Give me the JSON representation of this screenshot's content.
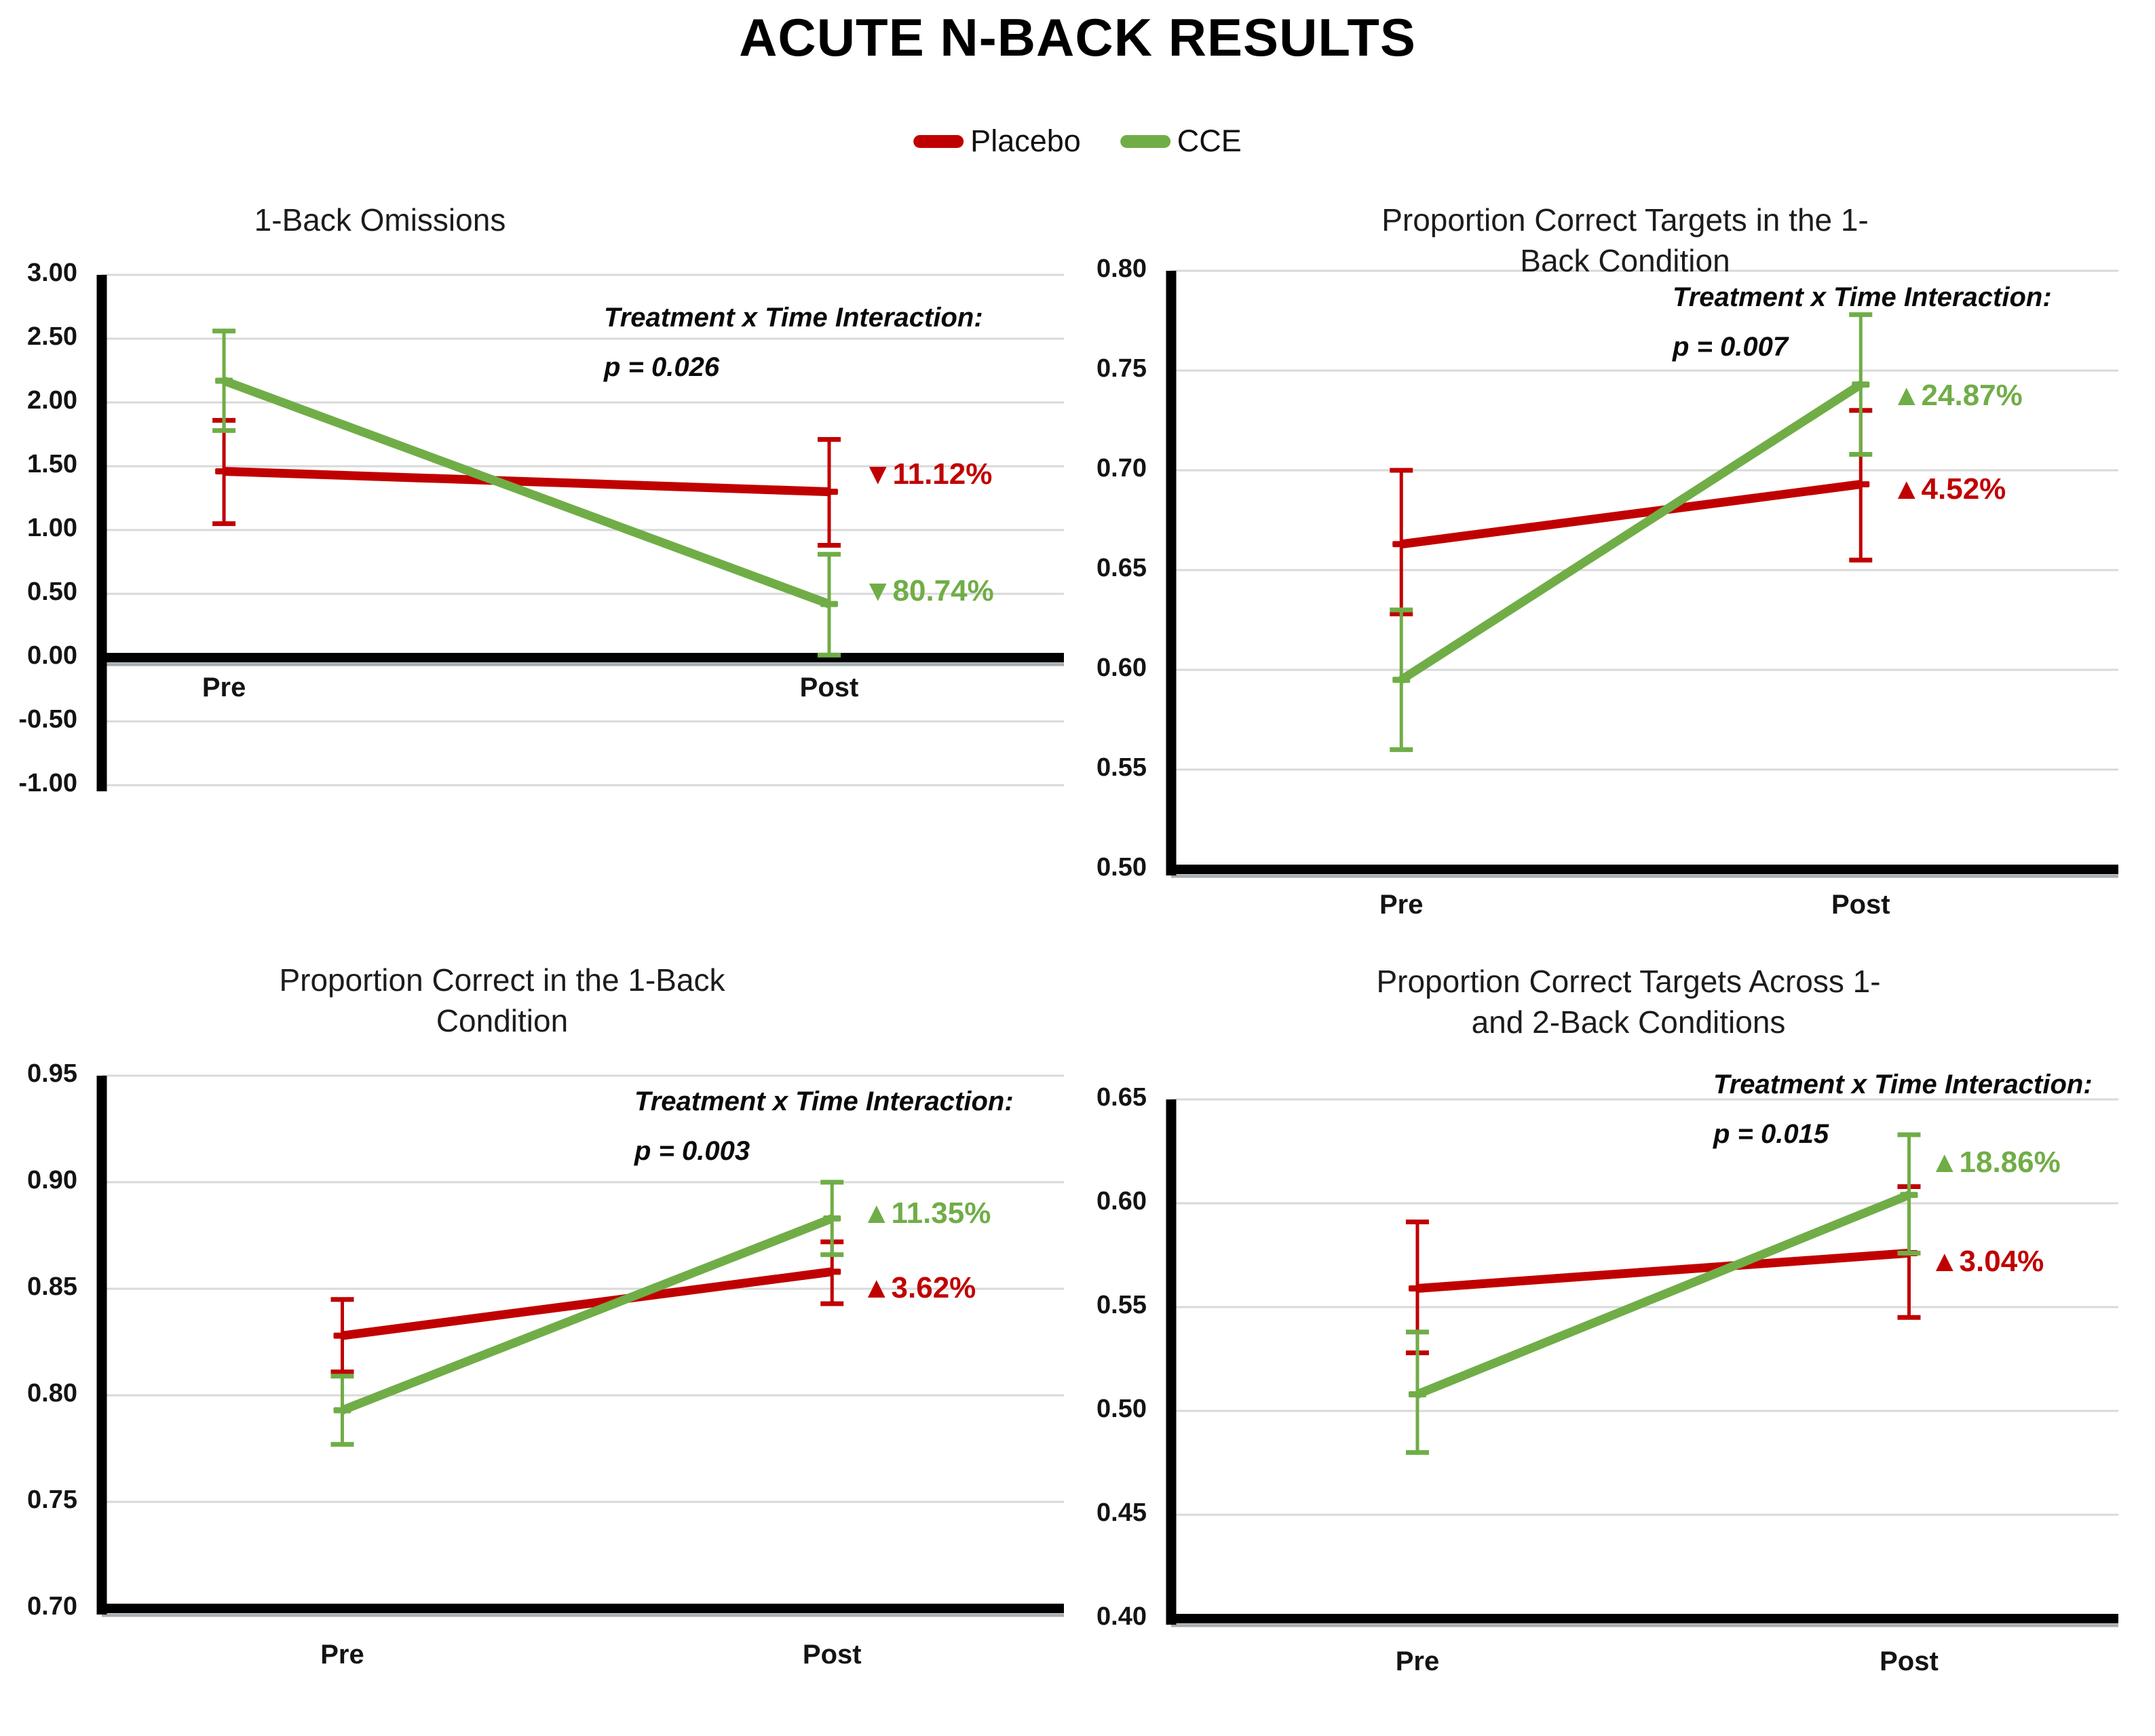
{
  "page_title": "ACUTE N-BACK RESULTS",
  "colors": {
    "placebo": "#C00000",
    "cce": "#70AD47",
    "grid": "#D9D9D9",
    "axis": "#000000",
    "axis_shadow": "#A8ADB2"
  },
  "legend": [
    {
      "label": "Placebo",
      "color_key": "placebo"
    },
    {
      "label": "CCE",
      "color_key": "cce"
    }
  ],
  "x_categories": [
    "Pre",
    "Post"
  ],
  "chart_data": [
    {
      "type": "line",
      "title": "1-Back Omissions",
      "categories": [
        "Pre",
        "Post"
      ],
      "ylim": [
        -1.0,
        3.0
      ],
      "ytick_step": 0.5,
      "yticks": [
        "3.00",
        "2.50",
        "2.00",
        "1.50",
        "1.00",
        "0.50",
        "0.00",
        "-0.50",
        "-1.00"
      ],
      "grid": true,
      "baseline_value": 0.0,
      "series": [
        {
          "name": "Placebo",
          "color_key": "placebo",
          "values": [
            1.46,
            1.3
          ],
          "error_low": [
            1.05,
            0.88
          ],
          "error_high": [
            1.86,
            1.71
          ]
        },
        {
          "name": "CCE",
          "color_key": "cce",
          "values": [
            2.17,
            0.42
          ],
          "error_low": [
            1.78,
            0.02
          ],
          "error_high": [
            2.56,
            0.81
          ]
        }
      ],
      "annotation": {
        "line1": "Treatment x Time Interaction:",
        "line2": "p = 0.026"
      },
      "pct_labels": [
        {
          "text": "▼11.12%",
          "series": "placebo"
        },
        {
          "text": "▼80.74%",
          "series": "cce"
        }
      ]
    },
    {
      "type": "line",
      "title": "Proportion Correct Targets in the 1-Back Condition",
      "categories": [
        "Pre",
        "Post"
      ],
      "ylim": [
        0.5,
        0.8
      ],
      "ytick_step": 0.05,
      "yticks": [
        "0.80",
        "0.75",
        "0.70",
        "0.65",
        "0.60",
        "0.55",
        "0.50"
      ],
      "grid": true,
      "baseline_value": null,
      "series": [
        {
          "name": "Placebo",
          "color_key": "placebo",
          "values": [
            0.663,
            0.693
          ],
          "error_low": [
            0.628,
            0.655
          ],
          "error_high": [
            0.7,
            0.73
          ]
        },
        {
          "name": "CCE",
          "color_key": "cce",
          "values": [
            0.595,
            0.743
          ],
          "error_low": [
            0.56,
            0.708
          ],
          "error_high": [
            0.63,
            0.778
          ]
        }
      ],
      "annotation": {
        "line1": "Treatment x Time Interaction:",
        "line2": "p = 0.007"
      },
      "pct_labels": [
        {
          "text": "▲24.87%",
          "series": "cce"
        },
        {
          "text": "▲4.52%",
          "series": "placebo"
        }
      ]
    },
    {
      "type": "line",
      "title": "Proportion Correct in the 1-Back Condition",
      "categories": [
        "Pre",
        "Post"
      ],
      "ylim": [
        0.7,
        0.95
      ],
      "ytick_step": 0.05,
      "yticks": [
        "0.95",
        "0.90",
        "0.85",
        "0.80",
        "0.75",
        "0.70"
      ],
      "grid": true,
      "baseline_value": null,
      "series": [
        {
          "name": "Placebo",
          "color_key": "placebo",
          "values": [
            0.828,
            0.858
          ],
          "error_low": [
            0.811,
            0.843
          ],
          "error_high": [
            0.845,
            0.872
          ]
        },
        {
          "name": "CCE",
          "color_key": "cce",
          "values": [
            0.793,
            0.883
          ],
          "error_low": [
            0.777,
            0.866
          ],
          "error_high": [
            0.809,
            0.9
          ]
        }
      ],
      "annotation": {
        "line1": "Treatment x Time Interaction:",
        "line2": "p = 0.003"
      },
      "pct_labels": [
        {
          "text": "▲11.35%",
          "series": "cce"
        },
        {
          "text": "▲3.62%",
          "series": "placebo"
        }
      ]
    },
    {
      "type": "line",
      "title": "Proportion Correct Targets Across 1- and 2-Back Conditions",
      "categories": [
        "Pre",
        "Post"
      ],
      "ylim": [
        0.4,
        0.65
      ],
      "ytick_step": 0.05,
      "yticks": [
        "0.65",
        "0.60",
        "0.55",
        "0.50",
        "0.45",
        "0.40"
      ],
      "grid": true,
      "baseline_value": null,
      "series": [
        {
          "name": "Placebo",
          "color_key": "placebo",
          "values": [
            0.559,
            0.576
          ],
          "error_low": [
            0.528,
            0.545
          ],
          "error_high": [
            0.591,
            0.608
          ]
        },
        {
          "name": "CCE",
          "color_key": "cce",
          "values": [
            0.508,
            0.604
          ],
          "error_low": [
            0.48,
            0.576
          ],
          "error_high": [
            0.538,
            0.633
          ]
        }
      ],
      "annotation": {
        "line1": "Treatment x Time Interaction:",
        "line2": "p = 0.015"
      },
      "pct_labels": [
        {
          "text": "▲18.86%",
          "series": "cce"
        },
        {
          "text": "▲3.04%",
          "series": "placebo"
        }
      ]
    }
  ]
}
